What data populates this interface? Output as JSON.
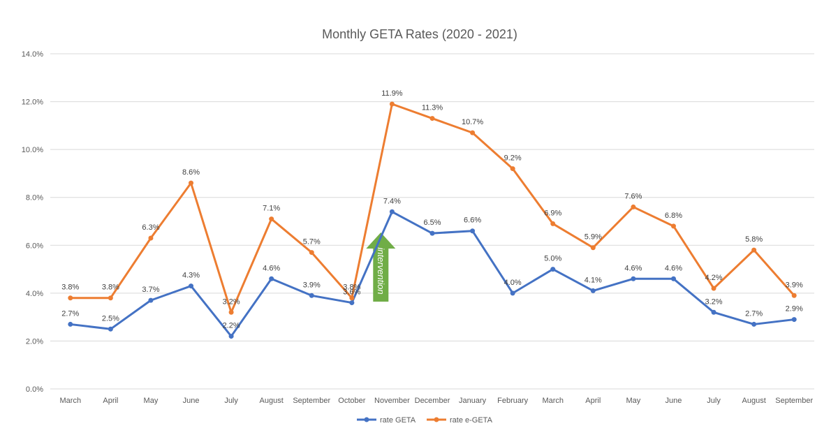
{
  "chart_data": {
    "type": "line",
    "title": "Monthly GETA Rates (2020 - 2021)",
    "categories": [
      "March",
      "April",
      "May",
      "June",
      "July",
      "August",
      "September",
      "October",
      "November",
      "December",
      "January",
      "February",
      "March",
      "April",
      "May",
      "June",
      "July",
      "August",
      "September"
    ],
    "series": [
      {
        "name": "rate GETA",
        "color": "#4472C4",
        "values": [
          2.7,
          2.5,
          3.7,
          4.3,
          2.2,
          4.6,
          3.9,
          3.6,
          7.4,
          6.5,
          6.6,
          4.0,
          5.0,
          4.1,
          4.6,
          4.6,
          3.2,
          2.7,
          2.9
        ],
        "labels": [
          "2.7%",
          "2.5%",
          "3.7%",
          "4.3%",
          "2.2%",
          "4.6%",
          "3.9%",
          "3.6%",
          "7.4%",
          "6.5%",
          "6.6%",
          "4.0%",
          "5.0%",
          "4.1%",
          "4.6%",
          "4.6%",
          "3.2%",
          "2.7%",
          "2.9%"
        ]
      },
      {
        "name": "rate e-GETA",
        "color": "#ED7D31",
        "values": [
          3.8,
          3.8,
          6.3,
          8.6,
          3.2,
          7.1,
          5.7,
          3.8,
          11.9,
          11.3,
          10.7,
          9.2,
          6.9,
          5.9,
          7.6,
          6.8,
          4.2,
          5.8,
          3.9
        ],
        "labels": [
          "3.8%",
          "3.8%",
          "6.3%",
          "8.6%",
          "3.2%",
          "7.1%",
          "5.7%",
          "3.8%",
          "11.9%",
          "11.3%",
          "10.7%",
          "9.2%",
          "6.9%",
          "5.9%",
          "7.6%",
          "6.8%",
          "4.2%",
          "5.8%",
          "3.9%"
        ]
      }
    ],
    "ylim": [
      0,
      14
    ],
    "yticks": [
      0,
      2,
      4,
      6,
      8,
      10,
      12,
      14
    ],
    "ytick_labels": [
      "0.0%",
      "2.0%",
      "4.0%",
      "6.0%",
      "8.0%",
      "10.0%",
      "12.0%",
      "14.0%"
    ],
    "grid": true,
    "legend_position": "bottom",
    "annotation": {
      "text": "intervention",
      "color": "#70AD47"
    }
  }
}
